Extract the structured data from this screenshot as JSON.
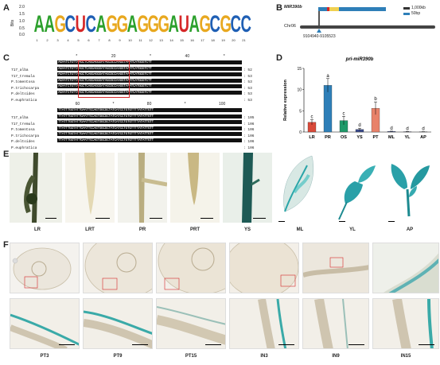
{
  "panels": {
    "A": "A",
    "B": "B",
    "C": "C",
    "D": "D",
    "E": "E",
    "F": "F"
  },
  "panel_a": {
    "ylabel": "Bits",
    "yticks": [
      "2.0",
      "1.5",
      "1.0",
      "0.5",
      "0.0"
    ],
    "logo_letters": [
      {
        "l": "A",
        "c": "#2ca02c"
      },
      {
        "l": "A",
        "c": "#2ca02c"
      },
      {
        "l": "G",
        "c": "#e8a81f"
      },
      {
        "l": "C",
        "c": "#1f5fb4"
      },
      {
        "l": "U",
        "c": "#d62728"
      },
      {
        "l": "C",
        "c": "#1f5fb4"
      },
      {
        "l": "A",
        "c": "#2ca02c"
      },
      {
        "l": "G",
        "c": "#e8a81f"
      },
      {
        "l": "G",
        "c": "#e8a81f"
      },
      {
        "l": "A",
        "c": "#2ca02c"
      },
      {
        "l": "G",
        "c": "#e8a81f"
      },
      {
        "l": "G",
        "c": "#e8a81f"
      },
      {
        "l": "G",
        "c": "#e8a81f"
      },
      {
        "l": "A",
        "c": "#2ca02c"
      },
      {
        "l": "U",
        "c": "#d62728"
      },
      {
        "l": "A",
        "c": "#2ca02c"
      },
      {
        "l": "G",
        "c": "#e8a81f"
      },
      {
        "l": "C",
        "c": "#1f5fb4"
      },
      {
        "l": "G",
        "c": "#e8a81f"
      },
      {
        "l": "C",
        "c": "#1f5fb4"
      },
      {
        "l": "C",
        "c": "#1f5fb4"
      }
    ],
    "positions": [
      "1",
      "2",
      "3",
      "4",
      "5",
      "6",
      "7",
      "8",
      "9",
      "10",
      "11",
      "12",
      "13",
      "14",
      "15",
      "16",
      "17",
      "18",
      "19",
      "20",
      "21"
    ]
  },
  "panel_b": {
    "gene": "MIR390b",
    "chrom": "Chr06",
    "coords": "9104940-9105523",
    "legend": [
      {
        "label": "1,000kb",
        "color": "#333333"
      },
      {
        "label": "50bp",
        "color": "#2e7fb8"
      }
    ]
  },
  "panel_c": {
    "block1": {
      "ruler": [
        "*",
        "20",
        "*",
        "40",
        "*"
      ],
      "rows": [
        {
          "name": "717_alba",
          "seq": "AGAATCTGTTAAGCTCAGGAGGGATAGCGCCAAGGTAAATCATGGGTCTT",
          "end": "52"
        },
        {
          "name": "717_tremula",
          "seq": "AGAATCTGTTAAGCTCAGGAGGGATAGCGCCAAGGTAAATCATGGGTCTT",
          "end": "53"
        },
        {
          "name": "P.tomentosa",
          "seq": "AGAATCTGTTAAGCTCAGGAGGGATAGCGCCAAGGTAAATCATGGGTCTT",
          "end": "53"
        },
        {
          "name": "P.trichocarpa",
          "seq": "AGAATCTGTTAAGCTCAGGAGGGATAGCGCCAAGGTAAATCATGGGTCTT",
          "end": "53"
        },
        {
          "name": "P.deltoides",
          "seq": "AGAATCTGTTAAGCTCAGGAGGGATAGCGCCAAGGTAAATCATGGGTCTT",
          "end": "53"
        },
        {
          "name": "P.euphratica",
          "seq": "AGAATCTGTTAAGCTCAGGAGGGATAGCGCCAAGGTAAATCATGGGTCTT",
          "end": "53"
        }
      ]
    },
    "block2": {
      "ruler": [
        "60",
        "*",
        "80",
        "*",
        "100"
      ],
      "rows": [
        {
          "name": "717_alba",
          "seq": "TTATTTGGTATTGAATTCCAGTGGCGCTATCATCCTGTGTTTTATATTGTT",
          "end": "105"
        },
        {
          "name": "717_tremula",
          "seq": "TTATTTGGTATTGAATTCCAGTGGCGCTATCATCCTGTGTTTTATATTGTT",
          "end": "106"
        },
        {
          "name": "P.tomentosa",
          "seq": "TTATTTGGTATTGAATTCCAGTGGCGCTATCATCCTGTGTTTTATATTGTT",
          "end": "106"
        },
        {
          "name": "P.trichocarpa",
          "seq": "TTATTTGGTATTGAATTCCAGTGGCGCTATCATCCTGTGTTTTATATTGTT",
          "end": "106"
        },
        {
          "name": "P.deltoides",
          "seq": "TTATTTGGTATTGAATTCCAGTGGCGCTATCATCCTGTGTTTTATATTGTT",
          "end": "106"
        },
        {
          "name": "P.euphratica",
          "seq": "TTATTTGGTATTGAATTCCAGTGGCGCTATCATCCTGTGTTTTATATTGTT",
          "end": "106"
        }
      ]
    }
  },
  "chart_data": {
    "type": "bar",
    "title": "pri-miR390b",
    "ylabel": "Relative expression",
    "xlabel": "",
    "ylim": [
      0,
      15
    ],
    "yticks": [
      0,
      5,
      10,
      15
    ],
    "categories": [
      "LR",
      "PR",
      "OS",
      "YS",
      "PT",
      "ML",
      "YL",
      "AP"
    ],
    "values": [
      2.3,
      11.0,
      2.7,
      0.6,
      5.6,
      0.15,
      0.08,
      0.05
    ],
    "errors": [
      0.6,
      1.6,
      1.0,
      0.3,
      1.5,
      0.05,
      0.03,
      0.03
    ],
    "letters": [
      "c",
      "a",
      "c",
      "d",
      "b",
      "d",
      "d",
      "d"
    ],
    "colors": [
      "#d94a3a",
      "#2e7fb8",
      "#1f9a6a",
      "#3a4a8a",
      "#e8826a",
      "#3a4a8a",
      "#3a4a8a",
      "#3a4a8a"
    ],
    "grid": false
  },
  "panel_e": {
    "labels": [
      "LR",
      "LRT",
      "PR",
      "PRT",
      "YS",
      "ML",
      "YL",
      "AP"
    ]
  },
  "panel_f": {
    "labels": [
      "PT3",
      "PT9",
      "PT15",
      "IN3",
      "IN9",
      "IN15"
    ]
  }
}
